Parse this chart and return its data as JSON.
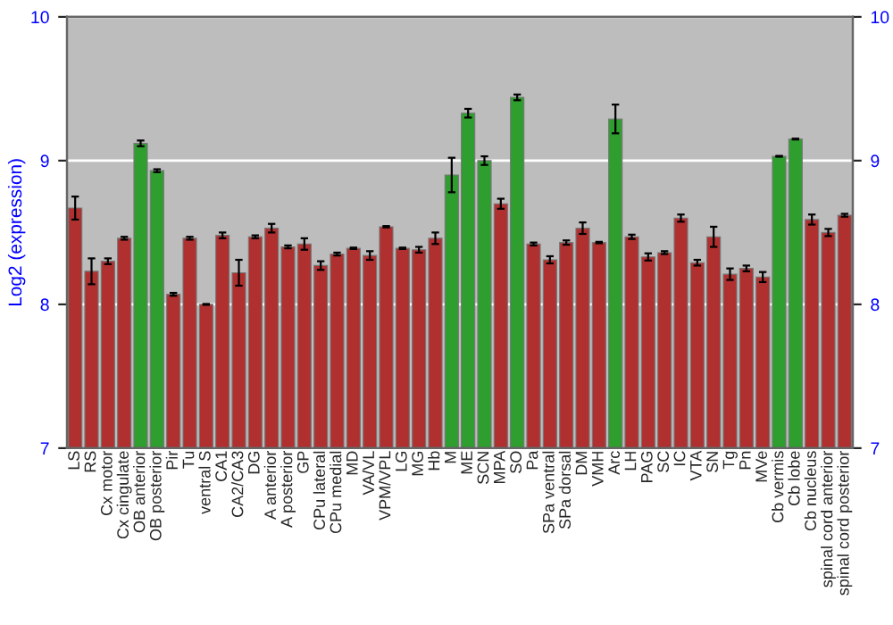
{
  "chart_data": {
    "type": "bar",
    "ylabel": "Log2 (expression)",
    "categories": [
      "LS",
      "RS",
      "Cx motor",
      "Cx cingulate",
      "OB anterior",
      "OB posterior",
      "Pir",
      "Tu",
      "ventral S",
      "CA1",
      "CA2/CA3",
      "DG",
      "A anterior",
      "A posterior",
      "GP",
      "CPu lateral",
      "CPu medial",
      "MD",
      "VA/VL",
      "VPM/VPL",
      "LG",
      "MG",
      "Hb",
      "M",
      "ME",
      "SCN",
      "MPA",
      "SO",
      "Pa",
      "SPa ventral",
      "SPa dorsal",
      "DM",
      "VMH",
      "Arc",
      "LH",
      "PAG",
      "SC",
      "IC",
      "VTA",
      "SN",
      "Tg",
      "Pn",
      "MVe",
      "Cb vermis",
      "Cb lobe",
      "Cb nucleus",
      "spinal cord anterior",
      "spinal cord posterior"
    ],
    "values": [
      8.67,
      8.23,
      8.3,
      8.46,
      9.12,
      8.93,
      8.07,
      8.46,
      8.0,
      8.48,
      8.22,
      8.47,
      8.53,
      8.4,
      8.42,
      8.27,
      8.35,
      8.39,
      8.34,
      8.54,
      8.39,
      8.38,
      8.46,
      8.9,
      9.33,
      9.0,
      8.7,
      9.44,
      8.42,
      8.31,
      8.43,
      8.53,
      8.43,
      9.29,
      8.47,
      8.33,
      8.36,
      8.6,
      8.29,
      8.47,
      8.21,
      8.25,
      8.19,
      9.03,
      9.15,
      8.59,
      8.5,
      8.62
    ],
    "errors": [
      0.08,
      0.09,
      0.02,
      0.01,
      0.02,
      0.01,
      0.01,
      0.01,
      0.003,
      0.02,
      0.09,
      0.01,
      0.03,
      0.01,
      0.04,
      0.03,
      0.01,
      0.005,
      0.03,
      0.005,
      0.005,
      0.02,
      0.04,
      0.12,
      0.03,
      0.03,
      0.035,
      0.02,
      0.01,
      0.025,
      0.015,
      0.04,
      0.005,
      0.1,
      0.015,
      0.025,
      0.01,
      0.025,
      0.02,
      0.07,
      0.04,
      0.02,
      0.035,
      0.003,
      0.003,
      0.035,
      0.025,
      0.01
    ],
    "colors": [
      "#b03030",
      "#b03030",
      "#b03030",
      "#b03030",
      "#2e9e2e",
      "#2e9e2e",
      "#b03030",
      "#b03030",
      "#b03030",
      "#b03030",
      "#b03030",
      "#b03030",
      "#b03030",
      "#b03030",
      "#b03030",
      "#b03030",
      "#b03030",
      "#b03030",
      "#b03030",
      "#b03030",
      "#b03030",
      "#b03030",
      "#b03030",
      "#2e9e2e",
      "#2e9e2e",
      "#2e9e2e",
      "#b03030",
      "#2e9e2e",
      "#b03030",
      "#b03030",
      "#b03030",
      "#b03030",
      "#b03030",
      "#2e9e2e",
      "#b03030",
      "#b03030",
      "#b03030",
      "#b03030",
      "#b03030",
      "#b03030",
      "#b03030",
      "#b03030",
      "#b03030",
      "#2e9e2e",
      "#2e9e2e",
      "#b03030",
      "#b03030",
      "#b03030"
    ],
    "ylim": [
      7,
      10
    ],
    "yticks": [
      7,
      8,
      9,
      10
    ],
    "y2lim": [
      7,
      10
    ],
    "y2ticks": [
      7,
      8,
      9,
      10
    ],
    "grid": "y",
    "legend": false
  }
}
